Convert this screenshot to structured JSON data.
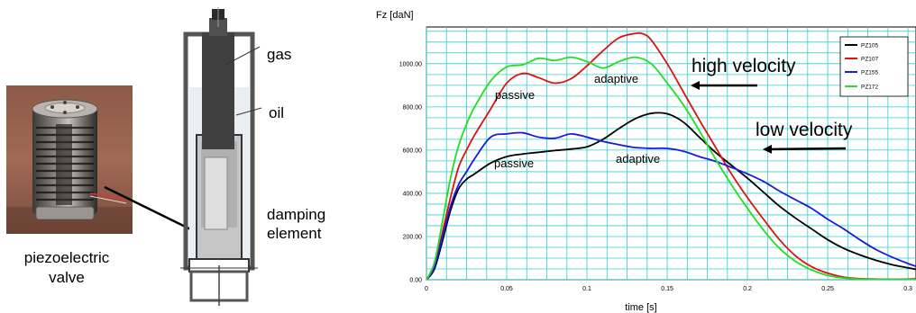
{
  "photo": {
    "caption_line1": "piezoelectric",
    "caption_line2": "valve"
  },
  "schematic": {
    "labels": {
      "gas": "gas",
      "oil": "oil",
      "damping_line1": "damping",
      "damping_line2": "element"
    }
  },
  "chart_data": {
    "type": "line",
    "title": "",
    "ylabel": "Fz [daN]",
    "xlabel": "time [s]",
    "xlim": [
      0,
      0.305
    ],
    "ylim": [
      0,
      1170
    ],
    "grid": true,
    "x_ticks": [
      0,
      0.05,
      0.1,
      0.15,
      0.2,
      0.25,
      0.3
    ],
    "x_tick_labels": [
      "0",
      "0.05",
      "0.1",
      "0.15",
      "0.2",
      "0.25",
      "0.3"
    ],
    "y_ticks": [
      0,
      200,
      400,
      600,
      800,
      1000
    ],
    "y_tick_labels": [
      "0.00",
      "200.00",
      "400.00",
      "600.00",
      "800.00",
      "1000.00"
    ],
    "legend_position": "top-right",
    "series": [
      {
        "name": "PZ105",
        "color": "#000000",
        "x": [
          0,
          0.005,
          0.01,
          0.015,
          0.02,
          0.025,
          0.03,
          0.04,
          0.05,
          0.06,
          0.07,
          0.08,
          0.09,
          0.1,
          0.11,
          0.12,
          0.13,
          0.14,
          0.15,
          0.16,
          0.17,
          0.18,
          0.19,
          0.2,
          0.21,
          0.22,
          0.23,
          0.24,
          0.25,
          0.26,
          0.27,
          0.28,
          0.29,
          0.3,
          0.305
        ],
        "y": [
          0,
          50,
          180,
          320,
          420,
          465,
          490,
          540,
          570,
          582,
          590,
          598,
          605,
          615,
          650,
          700,
          745,
          770,
          768,
          730,
          660,
          590,
          530,
          470,
          405,
          340,
          285,
          235,
          185,
          145,
          115,
          90,
          70,
          55,
          48
        ]
      },
      {
        "name": "PZ107",
        "color": "#e01010",
        "x": [
          0,
          0.005,
          0.01,
          0.015,
          0.02,
          0.025,
          0.03,
          0.04,
          0.05,
          0.06,
          0.07,
          0.08,
          0.09,
          0.1,
          0.11,
          0.12,
          0.13,
          0.135,
          0.14,
          0.15,
          0.16,
          0.17,
          0.18,
          0.19,
          0.2,
          0.21,
          0.22,
          0.23,
          0.24,
          0.25,
          0.26,
          0.27,
          0.28,
          0.29,
          0.3,
          0.305
        ],
        "y": [
          0,
          60,
          220,
          380,
          520,
          600,
          670,
          790,
          910,
          955,
          935,
          910,
          930,
          990,
          1060,
          1120,
          1140,
          1138,
          1110,
          1000,
          870,
          740,
          615,
          490,
          380,
          280,
          185,
          110,
          60,
          30,
          12,
          5,
          3,
          2,
          3,
          5
        ]
      },
      {
        "name": "PZ155",
        "color": "#1a1ae0",
        "x": [
          0,
          0.005,
          0.01,
          0.015,
          0.02,
          0.025,
          0.03,
          0.04,
          0.05,
          0.06,
          0.07,
          0.08,
          0.09,
          0.1,
          0.11,
          0.12,
          0.13,
          0.14,
          0.15,
          0.16,
          0.17,
          0.18,
          0.19,
          0.2,
          0.21,
          0.22,
          0.23,
          0.24,
          0.25,
          0.26,
          0.27,
          0.28,
          0.29,
          0.3,
          0.305
        ],
        "y": [
          0,
          60,
          200,
          340,
          440,
          500,
          560,
          660,
          675,
          680,
          660,
          655,
          675,
          660,
          640,
          625,
          612,
          608,
          608,
          595,
          570,
          548,
          520,
          490,
          455,
          410,
          370,
          330,
          280,
          235,
          185,
          140,
          105,
          75,
          62
        ]
      },
      {
        "name": "PZ172",
        "color": "#22dd22",
        "x": [
          0,
          0.005,
          0.01,
          0.015,
          0.02,
          0.025,
          0.03,
          0.04,
          0.05,
          0.06,
          0.07,
          0.08,
          0.09,
          0.1,
          0.11,
          0.12,
          0.13,
          0.14,
          0.15,
          0.16,
          0.17,
          0.18,
          0.19,
          0.2,
          0.21,
          0.22,
          0.23,
          0.24,
          0.25,
          0.26,
          0.27,
          0.28,
          0.29,
          0.3,
          0.305
        ],
        "y": [
          0,
          80,
          270,
          470,
          620,
          720,
          800,
          920,
          985,
          995,
          1025,
          1015,
          1030,
          1010,
          980,
          1010,
          1030,
          1000,
          910,
          810,
          690,
          560,
          440,
          330,
          230,
          145,
          85,
          45,
          20,
          8,
          3,
          2,
          2,
          2,
          2
        ]
      }
    ],
    "annotations": [
      {
        "text": "high velocity",
        "style": "large"
      },
      {
        "text": "low velocity",
        "style": "large"
      },
      {
        "text": "passive",
        "style": "small"
      },
      {
        "text": "adaptive",
        "style": "small"
      },
      {
        "text": "passive",
        "style": "small"
      },
      {
        "text": "adaptive",
        "style": "small"
      }
    ]
  }
}
